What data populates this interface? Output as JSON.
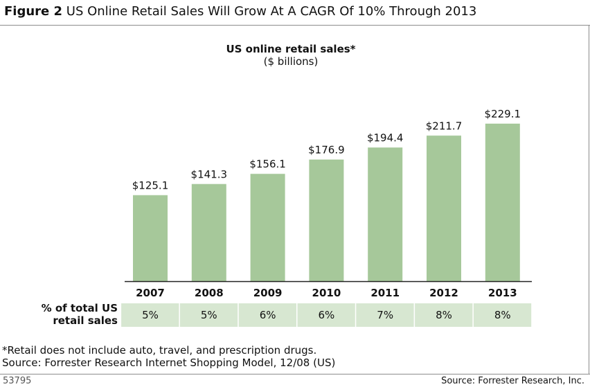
{
  "figure": {
    "label": "Figure 2",
    "title": "US Online Retail Sales Will Grow At A CAGR Of 10% Through 2013"
  },
  "colors": {
    "bar": "#a6c89a",
    "share_row": "#d7e7d1",
    "text": "#111111"
  },
  "chart_data": {
    "type": "bar",
    "title": "US online retail sales*",
    "subtitle": "($ billions)",
    "categories": [
      "2007",
      "2008",
      "2009",
      "2010",
      "2011",
      "2012",
      "2013"
    ],
    "values": [
      125.1,
      141.3,
      156.1,
      176.9,
      194.4,
      211.7,
      229.1
    ],
    "value_labels": [
      "$125.1",
      "$141.3",
      "$156.1",
      "$176.9",
      "$194.4",
      "$211.7",
      "$229.1"
    ],
    "ylim": [
      0,
      240
    ],
    "grid": false,
    "xlabel": "",
    "ylabel": "",
    "share_row_label_line1": "% of total US",
    "share_row_label_line2": "retail sales",
    "share_row_values": [
      "5%",
      "5%",
      "6%",
      "6%",
      "7%",
      "8%",
      "8%"
    ]
  },
  "footnotes": {
    "note": "*Retail does not include auto, travel, and prescription drugs.",
    "source": "Source: Forrester Research Internet Shopping Model, 12/08 (US)"
  },
  "footer": {
    "figure_id": "53795",
    "credit": "Source: Forrester Research, Inc."
  }
}
